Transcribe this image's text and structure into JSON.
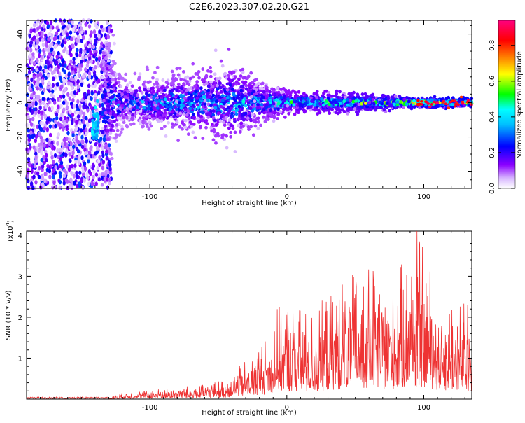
{
  "title": "C2E6.2023.307.02.20.G21",
  "chart_data": [
    {
      "type": "heatmap",
      "xlabel": "Height of straight line (km)",
      "ylabel": "Frequency (Hz)",
      "xlim": [
        -190,
        135
      ],
      "ylim": [
        -50,
        48
      ],
      "xticks": [
        -100,
        0,
        100
      ],
      "yticks": [
        -40,
        -20,
        0,
        20,
        40
      ],
      "colorbar": {
        "label": "Normalized spectral amplitude",
        "range": [
          0,
          0.94
        ],
        "ticks": [
          "0.0",
          "0.2",
          "0.4",
          "0.6",
          "0.8"
        ],
        "colors": [
          "#ffffff",
          "#8b00ff",
          "#0000ff",
          "#00ffff",
          "#00ff00",
          "#ffff00",
          "#ff8000",
          "#ff0000",
          "#ff0080"
        ]
      },
      "description_points": [
        {
          "height": -175,
          "spread_hz": 48,
          "amplitude": 0.25
        },
        {
          "height": -140,
          "spread_hz": 48,
          "amplitude": 0.3
        },
        {
          "height": -120,
          "spread_hz": 12,
          "amplitude": 0.35
        },
        {
          "height": -80,
          "spread_hz": 14,
          "amplitude": 0.4
        },
        {
          "height": -40,
          "spread_hz": 18,
          "amplitude": 0.45
        },
        {
          "height": -15,
          "spread_hz": 10,
          "amplitude": 0.4
        },
        {
          "height": 0,
          "spread_hz": 5,
          "amplitude": 0.5
        },
        {
          "height": 40,
          "spread_hz": 4,
          "amplitude": 0.6
        },
        {
          "height": 80,
          "spread_hz": 3,
          "amplitude": 0.7
        },
        {
          "height": 120,
          "spread_hz": 2,
          "amplitude": 0.9
        }
      ]
    },
    {
      "type": "line",
      "xlabel": "Height of straight line (km)",
      "ylabel": "SNR (10 * v/v)",
      "yscale_label": "(x10",
      "yscale_exp": "4",
      "yscale_close": ")",
      "xlim": [
        -190,
        135
      ],
      "ylim": [
        0,
        4.1
      ],
      "xticks": [
        -100,
        0,
        100
      ],
      "yticks": [
        1,
        2,
        3,
        4
      ],
      "color": "#ee3333",
      "envelope": [
        {
          "x": -190,
          "y": 0.03
        },
        {
          "x": -130,
          "y": 0.05
        },
        {
          "x": -120,
          "y": 0.15
        },
        {
          "x": -80,
          "y": 0.3
        },
        {
          "x": -60,
          "y": 0.35
        },
        {
          "x": -45,
          "y": 0.5
        },
        {
          "x": -35,
          "y": 0.8
        },
        {
          "x": -15,
          "y": 1.5
        },
        {
          "x": -5,
          "y": 2.45
        },
        {
          "x": 20,
          "y": 2.1
        },
        {
          "x": 35,
          "y": 2.9
        },
        {
          "x": 55,
          "y": 3.25
        },
        {
          "x": 80,
          "y": 3.05
        },
        {
          "x": 95,
          "y": 4.1
        },
        {
          "x": 110,
          "y": 2.7
        },
        {
          "x": 135,
          "y": 2.3
        }
      ]
    }
  ]
}
